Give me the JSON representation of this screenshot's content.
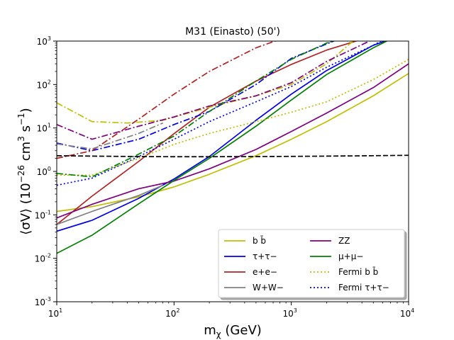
{
  "chart_data": {
    "type": "line",
    "title": "M31 (Einasto) (50')",
    "xlabel": "m_χ (GeV)",
    "ylabel": "⟨σV⟩ (10^-26 cm^3 s^-1)",
    "xscale": "log",
    "yscale": "log",
    "xlim": [
      10,
      10000
    ],
    "ylim": [
      0.001,
      1000
    ],
    "x_ticks": [
      {
        "mantissa": "10",
        "exp": "1",
        "value": 10
      },
      {
        "mantissa": "10",
        "exp": "2",
        "value": 100
      },
      {
        "mantissa": "10",
        "exp": "3",
        "value": 1000
      },
      {
        "mantissa": "10",
        "exp": "4",
        "value": 10000
      }
    ],
    "y_ticks": [
      {
        "mantissa": "10",
        "exp": "-3",
        "value": 0.001
      },
      {
        "mantissa": "10",
        "exp": "-2",
        "value": 0.01
      },
      {
        "mantissa": "10",
        "exp": "-1",
        "value": 0.1
      },
      {
        "mantissa": "10",
        "exp": "0",
        "value": 1
      },
      {
        "mantissa": "10",
        "exp": "1",
        "value": 10
      },
      {
        "mantissa": "10",
        "exp": "2",
        "value": 100
      },
      {
        "mantissa": "10",
        "exp": "3",
        "value": 1000
      }
    ],
    "legend_position": "lower-right",
    "series": [
      {
        "name": "b b̄",
        "color": "#bfbf00",
        "style": "solid",
        "legend": true,
        "x": [
          10,
          20,
          50,
          100,
          200,
          500,
          1000,
          2000,
          5000,
          10000
        ],
        "y": [
          0.12,
          0.155,
          0.26,
          0.44,
          0.86,
          2.3,
          5.5,
          14,
          55,
          180
        ]
      },
      {
        "name": "τ+τ−",
        "color": "#0000e6",
        "style": "solid",
        "legend": true,
        "x": [
          10,
          20,
          50,
          100,
          200,
          500,
          1000,
          2000,
          5000,
          7000
        ],
        "y": [
          0.042,
          0.075,
          0.24,
          0.67,
          2.2,
          15,
          60,
          210,
          800,
          1100
        ]
      },
      {
        "name": "e+e−",
        "color": "#b22222",
        "style": "solid",
        "legend": true,
        "x": [
          10,
          20,
          50,
          100,
          200,
          500,
          1000,
          2000,
          4000
        ],
        "y": [
          0.06,
          0.27,
          1.7,
          7.4,
          30,
          120,
          290,
          620,
          1100
        ]
      },
      {
        "name": "W+W−",
        "color": "#808080",
        "style": "solid",
        "legend": true,
        "x": [
          10,
          20,
          50,
          80.4
        ],
        "y": [
          0.06,
          0.12,
          0.28,
          0.48
        ]
      },
      {
        "name": "ZZ",
        "color": "#800080",
        "style": "solid",
        "legend": true,
        "x": [
          10,
          20,
          50,
          100,
          200,
          500,
          1000,
          2000,
          5000,
          10000
        ],
        "y": [
          0.085,
          0.175,
          0.4,
          0.6,
          1.15,
          3.2,
          8.3,
          22,
          85,
          300
        ]
      },
      {
        "name": "μ+μ−",
        "color": "#008000",
        "style": "solid",
        "legend": true,
        "x": [
          10,
          20,
          50,
          100,
          200,
          500,
          1000,
          2000,
          5000,
          7000
        ],
        "y": [
          0.013,
          0.034,
          0.18,
          0.62,
          2.0,
          11,
          44,
          170,
          700,
          1100
        ]
      },
      {
        "name": "Fermi b b̄",
        "color": "#bfbf00",
        "style": "dotted",
        "legend": true,
        "x": [
          10,
          20,
          50,
          100,
          200,
          500,
          1000,
          2000,
          5000,
          10000
        ],
        "y": [
          0.82,
          0.82,
          2.0,
          4.2,
          7.5,
          14,
          23,
          40,
          130,
          380
        ]
      },
      {
        "name": "Fermi τ+τ−",
        "color": "#0000e6",
        "style": "dotted",
        "legend": true,
        "x": [
          10,
          20,
          50,
          100,
          200,
          500,
          1000,
          2000,
          5000,
          6200
        ],
        "y": [
          0.48,
          0.7,
          2.2,
          5.5,
          14,
          40,
          90,
          250,
          800,
          1100
        ]
      },
      {
        "name": "",
        "color": "#bfbf00",
        "style": "dashdot",
        "legend": false,
        "x": [
          10,
          20,
          40,
          80,
          200,
          500,
          1000,
          2000,
          3500
        ],
        "y": [
          38,
          14,
          13,
          15,
          30,
          55,
          100,
          300,
          1100
        ]
      },
      {
        "name": "",
        "color": "#0000e6",
        "style": "dashdot",
        "legend": false,
        "x": [
          10,
          20,
          50,
          100,
          200,
          500,
          1000,
          2500
        ],
        "y": [
          4.5,
          3.0,
          5.5,
          12,
          24,
          100,
          400,
          1100
        ]
      },
      {
        "name": "",
        "color": "#b22222",
        "style": "dashdot",
        "legend": false,
        "x": [
          10,
          20,
          50,
          100,
          200,
          500,
          800
        ],
        "y": [
          2.0,
          3.0,
          16,
          60,
          200,
          700,
          1100
        ]
      },
      {
        "name": "",
        "color": "#808080",
        "style": "dashdot",
        "legend": false,
        "x": [
          10,
          20,
          50,
          80.4
        ],
        "y": [
          4.3,
          3.3,
          7.5,
          13
        ]
      },
      {
        "name": "",
        "color": "#800080",
        "style": "dashdot",
        "legend": false,
        "x": [
          10,
          20,
          50,
          100,
          200,
          500,
          1000,
          2000,
          5000
        ],
        "y": [
          12,
          5.5,
          11,
          18,
          32,
          55,
          110,
          340,
          1100
        ]
      },
      {
        "name": "",
        "color": "#008000",
        "style": "dashdot",
        "legend": false,
        "x": [
          10,
          20,
          50,
          100,
          200,
          500,
          1000,
          2000,
          2600
        ],
        "y": [
          0.9,
          0.75,
          2.5,
          6.5,
          24,
          120,
          380,
          900,
          1100
        ]
      },
      {
        "name": "",
        "color": "#000000",
        "style": "dashed",
        "legend": false,
        "x": [
          10,
          20,
          50,
          100,
          200,
          500,
          1000,
          2000,
          5000,
          10000
        ],
        "y": [
          2.3,
          2.25,
          2.2,
          2.18,
          2.18,
          2.2,
          2.22,
          2.25,
          2.3,
          2.35
        ]
      }
    ]
  }
}
